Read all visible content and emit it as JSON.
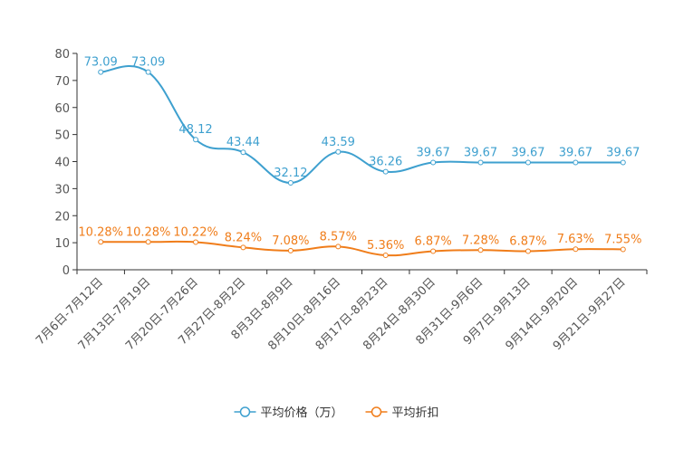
{
  "chart_data": {
    "type": "line",
    "title": "",
    "xlabel": "",
    "ylabel": "",
    "ylim": [
      0,
      80
    ],
    "yticks": [
      0,
      10,
      20,
      30,
      40,
      50,
      60,
      70,
      80
    ],
    "grid": false,
    "legend_position": "bottom",
    "categories": [
      "7月6日-7月12日",
      "7月13日-7月19日",
      "7月20日-7月26日",
      "7月27日-8月2日",
      "8月3日-8月9日",
      "8月10日-8月16日",
      "8月17日-8月23日",
      "8月24日-8月30日",
      "8月31日-9月6日",
      "9月7日-9月13日",
      "9月14日-9月20日",
      "9月21日-9月27日"
    ],
    "series": [
      {
        "name": "平均价格（万）",
        "color": "#3ea0cf",
        "values": [
          73.09,
          73.09,
          48.12,
          43.44,
          32.12,
          43.59,
          36.26,
          39.67,
          39.67,
          39.67,
          39.67,
          39.67
        ],
        "labels": [
          "73.09",
          "73.09",
          "48.12",
          "43.44",
          "32.12",
          "43.59",
          "36.26",
          "39.67",
          "39.67",
          "39.67",
          "39.67",
          "39.67"
        ]
      },
      {
        "name": "平均折扣",
        "color": "#f07d1a",
        "values": [
          10.28,
          10.28,
          10.22,
          8.24,
          7.08,
          8.57,
          5.36,
          6.87,
          7.28,
          6.87,
          7.63,
          7.55
        ],
        "labels": [
          "10.28%",
          "10.28%",
          "10.22%",
          "8.24%",
          "7.08%",
          "8.57%",
          "5.36%",
          "6.87%",
          "7.28%",
          "6.87%",
          "7.63%",
          "7.55%"
        ]
      }
    ]
  }
}
